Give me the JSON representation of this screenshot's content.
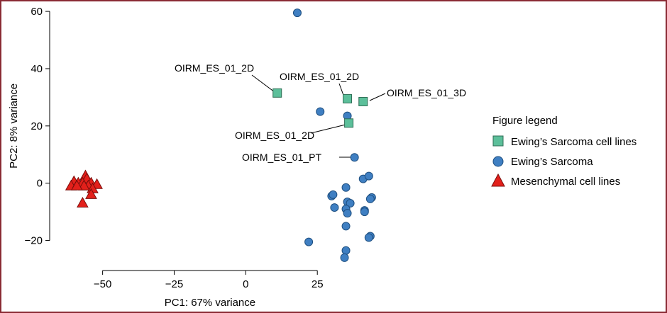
{
  "chart_data": {
    "type": "scatter",
    "xlabel": "PC1: 67% variance",
    "ylabel": "PC2: 8% variance",
    "xlim": [
      -68,
      48
    ],
    "ylim": [
      -30,
      62
    ],
    "xticks": [
      -50,
      -25,
      0,
      25
    ],
    "yticks": [
      60,
      40,
      20,
      0,
      -20
    ],
    "tick_labels_x": [
      "−50",
      "−25",
      "0",
      "25"
    ],
    "tick_labels_y": [
      "60",
      "40",
      "20",
      "0",
      "−20"
    ],
    "grid": false,
    "legend": {
      "title": "Figure legend",
      "placement": "right",
      "entries": [
        {
          "label": "Ewing’s Sarcoma cell lines",
          "marker": "square",
          "color": "#5cbf9a"
        },
        {
          "label": "Ewing’s Sarcoma",
          "marker": "circle",
          "color": "#3f7fc2"
        },
        {
          "label": "Mesenchymal cell lines",
          "marker": "triangle",
          "color": "#e3201b"
        }
      ]
    },
    "series": [
      {
        "name": "Ewing’s Sarcoma cell lines",
        "marker": "square",
        "color": "#5cbf9a",
        "points": [
          [
            11,
            31.5
          ],
          [
            35.5,
            29.5
          ],
          [
            41,
            28.5
          ],
          [
            36,
            21
          ]
        ]
      },
      {
        "name": "Ewing’s Sarcoma",
        "marker": "circle",
        "color": "#3f7fc2",
        "points": [
          [
            18,
            59.5
          ],
          [
            26,
            25
          ],
          [
            35.5,
            23.5
          ],
          [
            38,
            9
          ],
          [
            41,
            1.5
          ],
          [
            43,
            2.5
          ],
          [
            35,
            -1.5
          ],
          [
            30,
            -4.5
          ],
          [
            30.5,
            -4
          ],
          [
            44,
            -5
          ],
          [
            43.5,
            -5.5
          ],
          [
            35.5,
            -6.5
          ],
          [
            36.5,
            -7
          ],
          [
            31,
            -8.5
          ],
          [
            35,
            -9
          ],
          [
            41.5,
            -9.5
          ],
          [
            35.5,
            -10.5
          ],
          [
            41.5,
            -10
          ],
          [
            35,
            -15
          ],
          [
            22,
            -20.5
          ],
          [
            43.5,
            -18.5
          ],
          [
            43,
            -19
          ],
          [
            35,
            -23.5
          ],
          [
            34.5,
            -26
          ]
        ]
      },
      {
        "name": "Mesenchymal cell lines",
        "marker": "triangle",
        "color": "#e3201b",
        "points": [
          [
            -60,
            0.5
          ],
          [
            -61,
            -1
          ],
          [
            -58.5,
            0
          ],
          [
            -56,
            2.5
          ],
          [
            -55.5,
            1.5
          ],
          [
            -57,
            0
          ],
          [
            -54,
            0
          ],
          [
            -55,
            -1
          ],
          [
            -52,
            -0.5
          ],
          [
            -53.5,
            -2
          ],
          [
            -56.5,
            -1
          ],
          [
            -54,
            -4
          ],
          [
            -57,
            -7
          ],
          [
            -59,
            -1
          ]
        ]
      }
    ],
    "annotations": [
      {
        "text": "OIRM_ES_01_2D",
        "point": [
          11,
          31.5
        ]
      },
      {
        "text": "OIRM_ES_01_2D",
        "point": [
          35.5,
          29.5
        ]
      },
      {
        "text": "OIRM_ES_01_3D",
        "point": [
          41,
          28.5
        ]
      },
      {
        "text": "OIRM_ES_01_2D",
        "point": [
          36,
          21
        ]
      },
      {
        "text": "OIRM_ES_01_PT",
        "point": [
          38,
          9
        ]
      }
    ]
  }
}
